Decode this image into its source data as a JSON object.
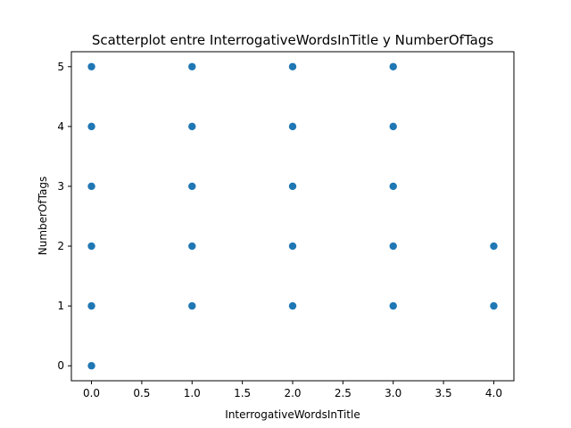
{
  "chart_data": {
    "type": "scatter",
    "title": "Scatterplot entre InterrogativeWordsInTitle y NumberOfTags",
    "xlabel": "InterrogativeWordsInTitle",
    "ylabel": "NumberOfTags",
    "xlim": [
      -0.2,
      4.2
    ],
    "ylim": [
      -0.25,
      5.25
    ],
    "xticks": [
      "0.0",
      "0.5",
      "1.0",
      "1.5",
      "2.0",
      "2.5",
      "3.0",
      "3.5",
      "4.0"
    ],
    "yticks": [
      "0",
      "1",
      "2",
      "3",
      "4",
      "5"
    ],
    "grid": false,
    "marker_color": "#1f77b4",
    "points": [
      {
        "x": 0,
        "y": 0
      },
      {
        "x": 0,
        "y": 1
      },
      {
        "x": 0,
        "y": 2
      },
      {
        "x": 0,
        "y": 3
      },
      {
        "x": 0,
        "y": 4
      },
      {
        "x": 0,
        "y": 5
      },
      {
        "x": 1,
        "y": 1
      },
      {
        "x": 1,
        "y": 2
      },
      {
        "x": 1,
        "y": 3
      },
      {
        "x": 1,
        "y": 4
      },
      {
        "x": 1,
        "y": 5
      },
      {
        "x": 2,
        "y": 1
      },
      {
        "x": 2,
        "y": 2
      },
      {
        "x": 2,
        "y": 3
      },
      {
        "x": 2,
        "y": 4
      },
      {
        "x": 2,
        "y": 5
      },
      {
        "x": 3,
        "y": 1
      },
      {
        "x": 3,
        "y": 2
      },
      {
        "x": 3,
        "y": 3
      },
      {
        "x": 3,
        "y": 4
      },
      {
        "x": 3,
        "y": 5
      },
      {
        "x": 4,
        "y": 1
      },
      {
        "x": 4,
        "y": 2
      }
    ]
  }
}
